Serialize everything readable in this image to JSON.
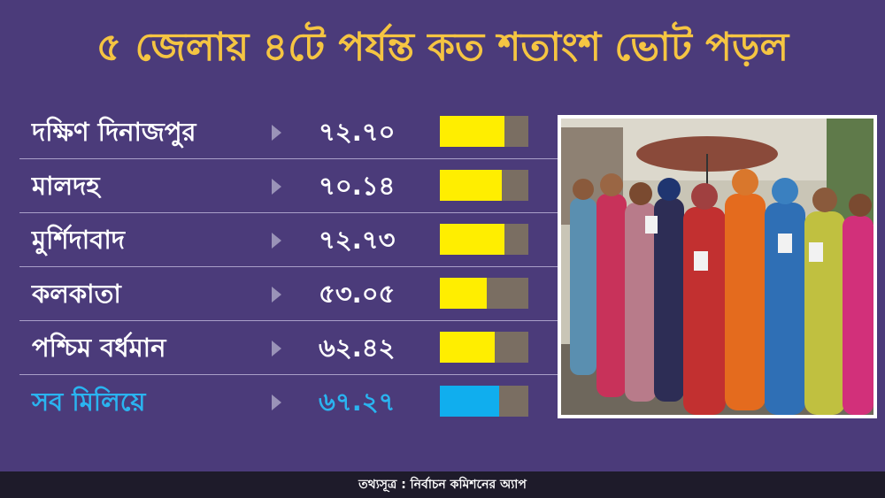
{
  "title": "৫ জেলায় ৪টে পর্যন্ত কত শতাংশ ভোট পড়ল",
  "chart_data": {
    "type": "bar",
    "categories": [
      "দক্ষিণ দিনাজপুর",
      "মালদহ",
      "মুর্শিদাবাদ",
      "কলকাতা",
      "পশ্চিম বর্ধমান",
      "সব মিলিয়ে"
    ],
    "value_labels": [
      "৭২.৭০",
      "৭০.১৪",
      "৭২.৭৩",
      "৫৩.০৫",
      "৬২.৪২",
      "৬৭.২৭"
    ],
    "values": [
      72.7,
      70.14,
      72.73,
      53.05,
      62.42,
      67.27
    ],
    "ylim": [
      0,
      100
    ],
    "colors": {
      "bar": "#ffee00",
      "total_bar": "#10aeee",
      "track": "#7a6e62",
      "total_text": "#2ab4f0"
    }
  },
  "photo": {
    "icon": "voters-queue-photo"
  },
  "footer": {
    "source": "তথ্যসূত্র : নির্বাচন কমিশনের অ্যাপ"
  }
}
